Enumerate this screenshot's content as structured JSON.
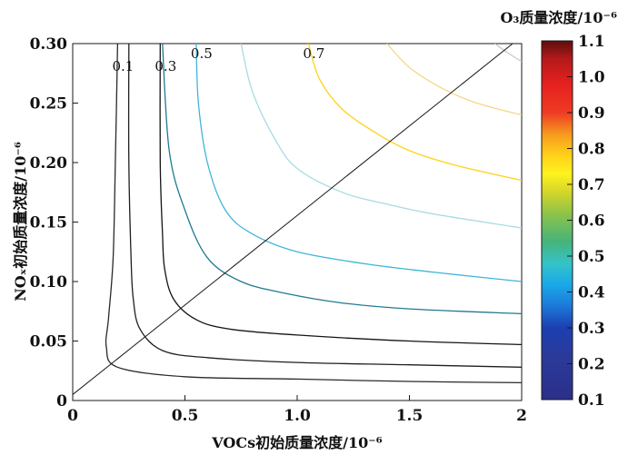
{
  "chart_data": {
    "type": "contour",
    "title": "O₃质量浓度/10⁻⁶",
    "xlabel": "VOCs初始质量浓度/10⁻⁶",
    "ylabel": "NOₓ初始质量浓度/10⁻⁶",
    "xlim": [
      0,
      2
    ],
    "ylim": [
      0,
      0.3
    ],
    "x_ticks": [
      "0",
      "0.5",
      "1.0",
      "1.5",
      "2"
    ],
    "y_ticks": [
      "0",
      "0.05",
      "0.10",
      "0.15",
      "0.20",
      "0.25",
      "0.30"
    ],
    "colorbar": {
      "range": [
        0.1,
        1.1
      ],
      "ticks": [
        "0.1",
        "0.2",
        "0.3",
        "0.4",
        "0.5",
        "0.6",
        "0.7",
        "0.8",
        "0.9",
        "1.0",
        "1.1"
      ],
      "colormap": "jet"
    },
    "contours": [
      {
        "level": 0.1,
        "label": "0.1",
        "color": "#2a2a2a",
        "points": [
          [
            0.2,
            0.3
          ],
          [
            0.19,
            0.2
          ],
          [
            0.18,
            0.12
          ],
          [
            0.16,
            0.07
          ],
          [
            0.15,
            0.045
          ],
          [
            0.2,
            0.028
          ],
          [
            0.5,
            0.02
          ],
          [
            1.0,
            0.018
          ],
          [
            1.5,
            0.016
          ],
          [
            2.0,
            0.015
          ]
        ]
      },
      {
        "level": 0.2,
        "label": "",
        "color": "#1f1f1f",
        "points": [
          [
            0.25,
            0.3
          ],
          [
            0.25,
            0.2
          ],
          [
            0.26,
            0.12
          ],
          [
            0.27,
            0.085
          ],
          [
            0.3,
            0.06
          ],
          [
            0.4,
            0.042
          ],
          [
            0.6,
            0.036
          ],
          [
            1.0,
            0.032
          ],
          [
            1.5,
            0.03
          ],
          [
            2.0,
            0.028
          ]
        ]
      },
      {
        "level": 0.3,
        "label": "0.3",
        "color": "#141414",
        "points": [
          [
            0.39,
            0.3
          ],
          [
            0.39,
            0.2
          ],
          [
            0.4,
            0.14
          ],
          [
            0.41,
            0.11
          ],
          [
            0.45,
            0.085
          ],
          [
            0.55,
            0.068
          ],
          [
            0.7,
            0.06
          ],
          [
            1.0,
            0.055
          ],
          [
            1.5,
            0.05
          ],
          [
            2.0,
            0.047
          ]
        ]
      },
      {
        "level": 0.4,
        "label": "",
        "color": "#1f7a8f",
        "points": [
          [
            0.4,
            0.3
          ],
          [
            0.43,
            0.21
          ],
          [
            0.5,
            0.16
          ],
          [
            0.6,
            0.12
          ],
          [
            0.75,
            0.1
          ],
          [
            0.95,
            0.09
          ],
          [
            1.2,
            0.082
          ],
          [
            1.5,
            0.077
          ],
          [
            2.0,
            0.073
          ]
        ]
      },
      {
        "level": 0.5,
        "label": "0.5",
        "color": "#3fb6d8",
        "points": [
          [
            0.55,
            0.3
          ],
          [
            0.56,
            0.25
          ],
          [
            0.6,
            0.2
          ],
          [
            0.68,
            0.16
          ],
          [
            0.8,
            0.14
          ],
          [
            1.0,
            0.125
          ],
          [
            1.3,
            0.115
          ],
          [
            1.6,
            0.108
          ],
          [
            2.0,
            0.1
          ]
        ]
      },
      {
        "level": 0.6,
        "label": "",
        "color": "#a8dbe5",
        "points": [
          [
            0.75,
            0.3
          ],
          [
            0.8,
            0.26
          ],
          [
            0.9,
            0.22
          ],
          [
            1.0,
            0.195
          ],
          [
            1.2,
            0.175
          ],
          [
            1.4,
            0.165
          ],
          [
            1.6,
            0.157
          ],
          [
            2.0,
            0.145
          ]
        ]
      },
      {
        "level": 0.7,
        "label": "0.7",
        "color": "#ffd21a",
        "points": [
          [
            1.05,
            0.3
          ],
          [
            1.1,
            0.27
          ],
          [
            1.2,
            0.245
          ],
          [
            1.35,
            0.225
          ],
          [
            1.5,
            0.21
          ],
          [
            1.7,
            0.198
          ],
          [
            2.0,
            0.185
          ]
        ]
      },
      {
        "level": 0.8,
        "label": "",
        "color": "#f2d88a",
        "points": [
          [
            1.4,
            0.3
          ],
          [
            1.5,
            0.28
          ],
          [
            1.65,
            0.262
          ],
          [
            1.8,
            0.25
          ],
          [
            2.0,
            0.24
          ]
        ]
      },
      {
        "level": 0.9,
        "label": "",
        "color": "#c9c9c9",
        "points": [
          [
            1.88,
            0.3
          ],
          [
            1.94,
            0.292
          ],
          [
            2.0,
            0.285
          ]
        ]
      }
    ],
    "reference_line": {
      "points": [
        [
          0,
          0.005
        ],
        [
          1.96,
          0.3
        ]
      ],
      "color": "#1a1a1a"
    },
    "grid": false
  }
}
